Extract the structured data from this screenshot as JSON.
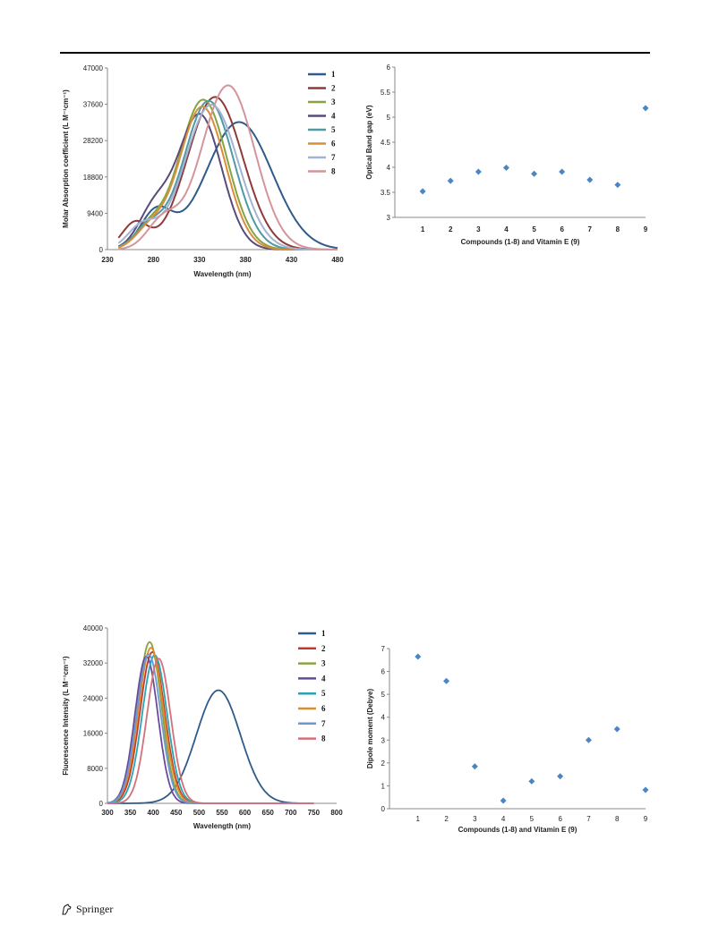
{
  "footer": {
    "publisher": "Springer",
    "logo_icon": "springer-horse-icon"
  },
  "chart_data": [
    {
      "id": "absorption",
      "type": "line",
      "xlabel": "Wavelength (nm)",
      "ylabel": "Molar Absorption coefficient (L M⁻¹cm⁻¹)",
      "xlim": [
        230,
        480
      ],
      "ylim": [
        0,
        47000
      ],
      "xticks": [
        230,
        280,
        330,
        380,
        430,
        480
      ],
      "yticks": [
        0,
        9400,
        18800,
        28200,
        37600,
        47000
      ],
      "legend_position": "top-right",
      "grid": false,
      "series": [
        {
          "name": "1",
          "color": "#2f5b8a",
          "peaks": [
            {
              "x": 283,
              "y": 9600,
              "w": 17
            },
            {
              "x": 373,
              "y": 33000,
              "w": 36
            }
          ]
        },
        {
          "name": "2",
          "color": "#8e3a3a",
          "peaks": [
            {
              "x": 260,
              "y": 6800,
              "w": 14
            },
            {
              "x": 347,
              "y": 39500,
              "w": 30
            }
          ]
        },
        {
          "name": "3",
          "color": "#8aa340",
          "peaks": [
            {
              "x": 275,
              "y": 5200,
              "w": 16
            },
            {
              "x": 334,
              "y": 38800,
              "w": 26
            }
          ]
        },
        {
          "name": "4",
          "color": "#5a4a7a",
          "peaks": [
            {
              "x": 280,
              "y": 9500,
              "w": 17
            },
            {
              "x": 330,
              "y": 35000,
              "w": 24
            }
          ]
        },
        {
          "name": "5",
          "color": "#4f9aa3",
          "peaks": [
            {
              "x": 275,
              "y": 5500,
              "w": 16
            },
            {
              "x": 340,
              "y": 38500,
              "w": 27
            }
          ]
        },
        {
          "name": "6",
          "color": "#d88f3a",
          "peaks": [
            {
              "x": 276,
              "y": 5000,
              "w": 16
            },
            {
              "x": 333,
              "y": 37000,
              "w": 25
            }
          ]
        },
        {
          "name": "7",
          "color": "#a3b3d3",
          "peaks": [
            {
              "x": 268,
              "y": 6000,
              "w": 16
            },
            {
              "x": 343,
              "y": 37500,
              "w": 29
            }
          ]
        },
        {
          "name": "8",
          "color": "#d4959a",
          "peaks": [
            {
              "x": 290,
              "y": 7200,
              "w": 17
            },
            {
              "x": 361,
              "y": 42500,
              "w": 29
            }
          ]
        }
      ]
    },
    {
      "id": "band-gap",
      "type": "scatter",
      "xlabel": "Compounds (1-8) and Vitamin E (9)",
      "ylabel": "Optical Band gap (eV)",
      "xlim": [
        0,
        9
      ],
      "ylim": [
        3,
        6
      ],
      "xticks": [
        1,
        2,
        3,
        4,
        5,
        6,
        7,
        8,
        9
      ],
      "yticks": [
        3,
        3.5,
        4,
        4.5,
        5,
        5.5,
        6
      ],
      "ytick_labels": [
        "3",
        "3.5",
        "4",
        "4.5",
        "5",
        "5.5",
        "6"
      ],
      "grid": false,
      "color": "#4a86c5",
      "x": [
        1,
        2,
        3,
        4,
        5,
        6,
        7,
        8,
        9
      ],
      "y": [
        3.52,
        3.73,
        3.91,
        3.99,
        3.87,
        3.91,
        3.75,
        3.65,
        5.18
      ]
    },
    {
      "id": "fluorescence",
      "type": "line",
      "xlabel": "Wavelength (nm)",
      "ylabel": "Fluorescence Intensity (L M⁻¹cm⁻¹)",
      "xlim": [
        300,
        800
      ],
      "ylim": [
        0,
        40000
      ],
      "xticks": [
        300,
        350,
        400,
        450,
        500,
        550,
        600,
        650,
        700,
        750,
        800
      ],
      "yticks": [
        0,
        8000,
        16000,
        24000,
        32000,
        40000
      ],
      "legend_position": "top-right",
      "grid": false,
      "series": [
        {
          "name": "1",
          "color": "#2f5b8a",
          "peak": {
            "x": 542,
            "y": 25800,
            "w": 48
          }
        },
        {
          "name": "2",
          "color": "#c0392b",
          "peak": {
            "x": 398,
            "y": 34500,
            "w": 27
          }
        },
        {
          "name": "3",
          "color": "#8aa340",
          "peak": {
            "x": 392,
            "y": 36800,
            "w": 26
          }
        },
        {
          "name": "4",
          "color": "#6a4a9a",
          "peak": {
            "x": 385,
            "y": 33500,
            "w": 25
          }
        },
        {
          "name": "5",
          "color": "#2aa3b3",
          "peak": {
            "x": 403,
            "y": 33800,
            "w": 27
          }
        },
        {
          "name": "6",
          "color": "#e08a2a",
          "peak": {
            "x": 395,
            "y": 35500,
            "w": 27
          }
        },
        {
          "name": "7",
          "color": "#6a9ad3",
          "peak": {
            "x": 390,
            "y": 34000,
            "w": 26
          }
        },
        {
          "name": "8",
          "color": "#d4707a",
          "peak": {
            "x": 412,
            "y": 33000,
            "w": 26
          }
        }
      ]
    },
    {
      "id": "dipole",
      "type": "scatter",
      "xlabel": "Compounds (1-8) and Vitamin E (9)",
      "ylabel": "Dipole moment (Debye)",
      "xlim": [
        0,
        9
      ],
      "ylim": [
        0,
        7
      ],
      "xticks": [
        1,
        2,
        3,
        4,
        5,
        6,
        7,
        8,
        9
      ],
      "yticks": [
        0,
        1,
        2,
        3,
        4,
        5,
        6,
        7
      ],
      "ytick_labels": [
        "0",
        "1",
        "2",
        "3",
        "4",
        "5",
        "6",
        "7"
      ],
      "grid": false,
      "color": "#4a86c5",
      "x": [
        1,
        2,
        3,
        4,
        5,
        6,
        7,
        8,
        9
      ],
      "y": [
        6.65,
        5.58,
        1.85,
        0.35,
        1.2,
        1.42,
        3.0,
        3.48,
        0.82
      ]
    }
  ]
}
